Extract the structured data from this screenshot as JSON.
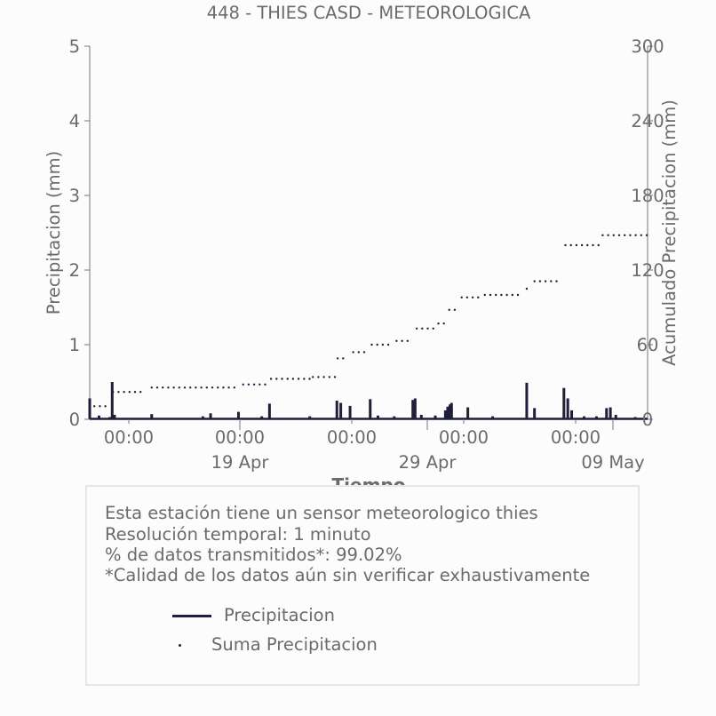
{
  "chart_data": {
    "type": "bar+scatter",
    "title": "448 - THIES CASD - METEOROLOGICA",
    "xlabel": "Tiempo",
    "ylabel_left": "Precipitacion (mm)",
    "ylabel_right": "Acumulado Precipitacion (mm)",
    "ylim_left": [
      0,
      5
    ],
    "ylim_right": [
      0,
      300
    ],
    "yticks_left": [
      0,
      1,
      2,
      3,
      4,
      5
    ],
    "yticks_right": [
      0,
      60,
      120,
      180,
      240,
      300
    ],
    "x_range_days": [
      "2024-04-12",
      "2024-05-12"
    ],
    "xticks_minor": [
      "00:00",
      "00:00",
      "00:00",
      "00:00",
      "00:00"
    ],
    "xticks_major": [
      "19 Apr",
      "29 Apr",
      "09 May"
    ],
    "colors": {
      "bars": "#1f1f3a",
      "cumulative": "#1f1f3a",
      "text": "#6b6b6b",
      "axis": "#777777"
    },
    "series": [
      {
        "name": "Precipitacion",
        "kind": "bar",
        "points": [
          [
            "2024-04-12 00:00",
            0.28
          ],
          [
            "2024-04-12 12:00",
            0.05
          ],
          [
            "2024-04-13 02:00",
            0.03
          ],
          [
            "2024-04-13 05:00",
            0.5
          ],
          [
            "2024-04-13 08:00",
            0.06
          ],
          [
            "2024-04-15 08:00",
            0.07
          ],
          [
            "2024-04-18 02:00",
            0.04
          ],
          [
            "2024-04-18 12:00",
            0.08
          ],
          [
            "2024-04-20 00:00",
            0.1
          ],
          [
            "2024-04-21 06:00",
            0.04
          ],
          [
            "2024-04-21 16:00",
            0.21
          ],
          [
            "2024-04-23 20:00",
            0.04
          ],
          [
            "2024-04-25 07:00",
            0.25
          ],
          [
            "2024-04-25 12:00",
            0.22
          ],
          [
            "2024-04-26 00:00",
            0.18
          ],
          [
            "2024-04-27 02:00",
            0.27
          ],
          [
            "2024-04-27 12:00",
            0.05
          ],
          [
            "2024-04-28 09:00",
            0.04
          ],
          [
            "2024-04-29 09:00",
            0.26
          ],
          [
            "2024-04-29 12:00",
            0.28
          ],
          [
            "2024-04-29 20:00",
            0.06
          ],
          [
            "2024-04-30 14:00",
            0.05
          ],
          [
            "2024-04-31 03:00",
            0.12
          ],
          [
            "2024-04-31 09:00",
            0.2
          ],
          [
            "2024-05-01 06:00",
            0.17
          ],
          [
            "2024-05-01 11:00",
            0.22
          ],
          [
            "2024-05-02 08:00",
            0.16
          ],
          [
            "2024-05-03 16:00",
            0.04
          ],
          [
            "2024-05-05 12:00",
            0.49
          ],
          [
            "2024-05-05 22:00",
            0.15
          ],
          [
            "2024-05-07 12:00",
            0.42
          ],
          [
            "2024-05-07 17:00",
            0.28
          ],
          [
            "2024-05-07 22:00",
            0.12
          ],
          [
            "2024-05-08 14:00",
            0.04
          ],
          [
            "2024-05-09 06:00",
            0.04
          ],
          [
            "2024-05-09 19:00",
            0.15
          ],
          [
            "2024-05-10 00:00",
            0.16
          ],
          [
            "2024-05-10 07:00",
            0.06
          ],
          [
            "2024-05-11 08:00",
            0.03
          ]
        ]
      },
      {
        "name": "Suma Precipitacion",
        "kind": "dotted",
        "segments": [
          {
            "x": [
              "2024-04-12 06:00",
              "2024-04-13 02:00"
            ],
            "y": 10.5
          },
          {
            "x": [
              "2024-04-13 06:00",
              "2024-04-14 18:00"
            ],
            "y": 22
          },
          {
            "x": [
              "2024-04-15 08:00",
              "2024-04-20 00:00"
            ],
            "y": 25.5
          },
          {
            "x": [
              "2024-04-20 06:00",
              "2024-04-21 14:00"
            ],
            "y": 28
          },
          {
            "x": [
              "2024-04-21 18:00",
              "2024-04-23 20:00"
            ],
            "y": 32.5
          },
          {
            "x": [
              "2024-04-24 00:00",
              "2024-04-25 06:00"
            ],
            "y": 34
          },
          {
            "x": [
              "2024-04-25 08:00",
              "2024-04-25 22:00"
            ],
            "y": 49
          },
          {
            "x": [
              "2024-04-26 04:00",
              "2024-04-27 00:00"
            ],
            "y": 54
          },
          {
            "x": [
              "2024-04-27 04:00",
              "2024-04-28 08:00"
            ],
            "y": 60
          },
          {
            "x": [
              "2024-04-28 12:00",
              "2024-04-29 06:00"
            ],
            "y": 63
          },
          {
            "x": [
              "2024-04-29 14:00",
              "2024-04-30 16:00"
            ],
            "y": 73
          },
          {
            "x": [
              "2024-04-30 18:00",
              "2024-05-01 02:00"
            ],
            "y": 77
          },
          {
            "x": [
              "2024-05-01 08:00",
              "2024-05-01 18:00"
            ],
            "y": 88
          },
          {
            "x": [
              "2024-05-02 00:00",
              "2024-05-03 04:00"
            ],
            "y": 98
          },
          {
            "x": [
              "2024-05-03 06:00",
              "2024-05-05 06:00"
            ],
            "y": 100
          },
          {
            "x": [
              "2024-05-05 12:00",
              "2024-05-05 14:00"
            ],
            "y": 105
          },
          {
            "x": [
              "2024-05-05 22:00",
              "2024-05-07 06:00"
            ],
            "y": 111
          },
          {
            "x": [
              "2024-05-07 14:00",
              "2024-05-09 10:00"
            ],
            "y": 140
          },
          {
            "x": [
              "2024-05-09 14:00",
              "2024-05-11 24:00"
            ],
            "y": 148
          }
        ]
      }
    ]
  },
  "info_box": {
    "lines": [
      "Esta estación tiene un sensor meteorologico thies",
      "Resolución temporal: 1 minuto",
      "% de datos transmitidos*: 99.02%",
      "*Calidad de los datos aún sin verificar exhaustivamente"
    ],
    "legend": [
      {
        "label": "Precipitacion",
        "marker": "line"
      },
      {
        "label": "Suma Precipitacion",
        "marker": "dot"
      }
    ]
  }
}
